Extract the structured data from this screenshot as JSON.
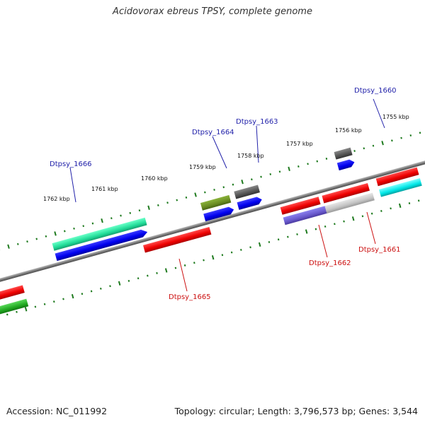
{
  "title": "Acidovorax ebreus TPSY, complete genome",
  "footer": {
    "accession": "Accession: NC_011992",
    "summary": "Topology: circular; Length: 3,796,573 bp; Genes: 3,544"
  },
  "scale_labels": [
    "1755 kbp",
    "1756 kbp",
    "1757 kbp",
    "1758 kbp",
    "1759 kbp",
    "1760 kbp",
    "1761 kbp",
    "1762 kbp"
  ],
  "gene_labels_top": [
    "Dtpsy_1660",
    "Dtpsy_1663",
    "Dtpsy_1664",
    "Dtpsy_1666"
  ],
  "gene_labels_bottom": [
    "Dtpsy_1661",
    "Dtpsy_1662",
    "Dtpsy_1665"
  ],
  "colors": {
    "backbone": "#7a7a7a",
    "tick": "#1e7a1e",
    "label_top": "#2222aa",
    "label_bottom": "#cc1111"
  }
}
